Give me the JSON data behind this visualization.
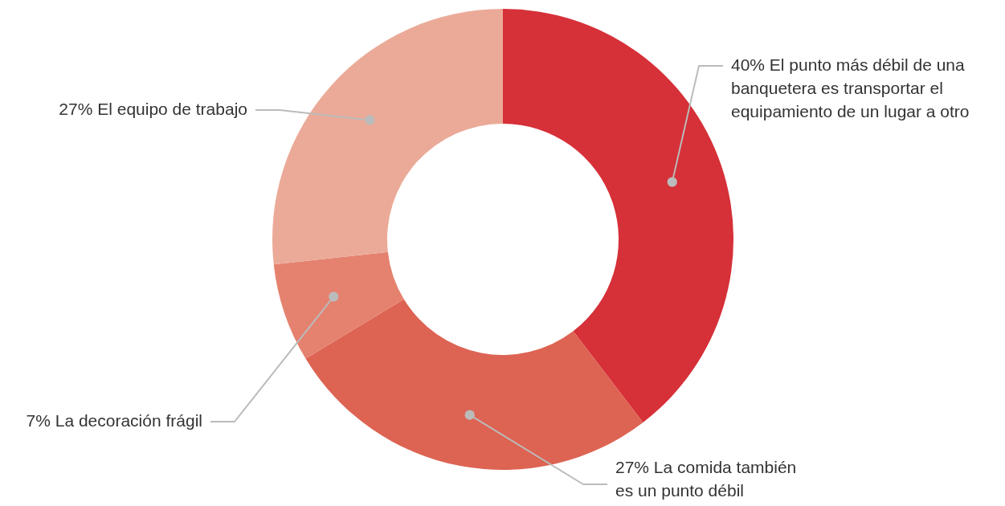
{
  "chart_data": {
    "type": "donut",
    "categories": [
      "El punto más débil de una\nbanquetera es transportar el\nequipamiento de un lugar a otro",
      "La comida también\nes un punto débil",
      "La decoración frágil",
      "El equipo de trabajo"
    ],
    "values": [
      40,
      27,
      7,
      27
    ],
    "value_labels": [
      "40%",
      "27%",
      "7%",
      "27%"
    ],
    "colors": [
      "#d63038",
      "#dd6353",
      "#e5826f",
      "#ebaa98"
    ]
  }
}
